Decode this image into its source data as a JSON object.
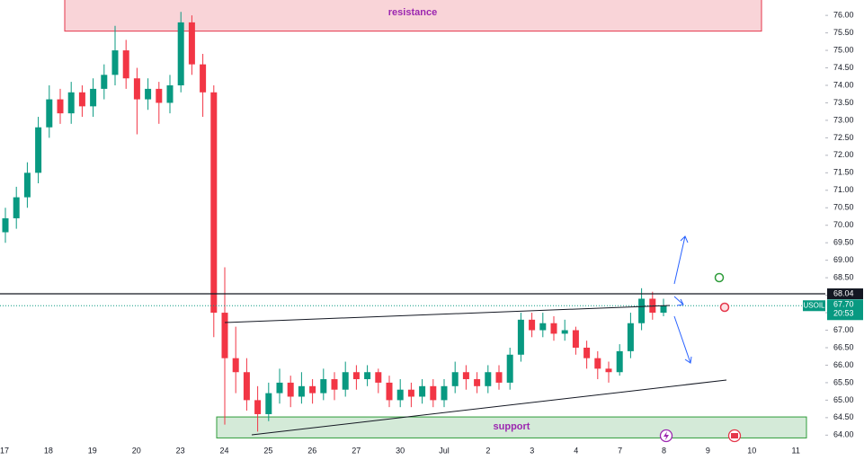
{
  "chart_data": {
    "type": "candlestick",
    "symbol": "USOIL",
    "current_price": {
      "value": 67.7,
      "label": "67.70"
    },
    "countdown": "20:53",
    "level": {
      "value": 68.04,
      "label": "68.04"
    },
    "zones": [
      {
        "name": "resistance",
        "low": 75.55,
        "high": 76.5
      },
      {
        "name": "support",
        "low": 63.92,
        "high": 64.52
      }
    ],
    "up_color": "#089981",
    "down_color": "#f23645",
    "ylim": [
      63.7,
      76.44
    ],
    "yticks": [
      {
        "value": 64,
        "label": "64.00"
      },
      {
        "value": 64.5,
        "label": "64.50"
      },
      {
        "value": 65,
        "label": "65.00"
      },
      {
        "value": 65.5,
        "label": "65.50"
      },
      {
        "value": 66,
        "label": "66.00"
      },
      {
        "value": 66.5,
        "label": "66.50"
      },
      {
        "value": 67,
        "label": "67.00"
      },
      {
        "value": 67.5,
        "label": "67.50"
      },
      {
        "value": 68,
        "label": "68.00"
      },
      {
        "value": 68.5,
        "label": "68.50"
      },
      {
        "value": 69,
        "label": "69.00"
      },
      {
        "value": 69.5,
        "label": "69.50"
      },
      {
        "value": 70,
        "label": "70.00"
      },
      {
        "value": 70.5,
        "label": "70.50"
      },
      {
        "value": 71,
        "label": "71.00"
      },
      {
        "value": 71.5,
        "label": "71.50"
      },
      {
        "value": 72,
        "label": "72.00"
      },
      {
        "value": 72.5,
        "label": "72.50"
      },
      {
        "value": 73,
        "label": "73.00"
      },
      {
        "value": 73.5,
        "label": "73.50"
      },
      {
        "value": 74,
        "label": "74.00"
      },
      {
        "value": 74.5,
        "label": "74.50"
      },
      {
        "value": 75,
        "label": "75.00"
      },
      {
        "value": 75.5,
        "label": "75.50"
      },
      {
        "value": 76,
        "label": "76.00"
      }
    ],
    "x_labels": [
      "17",
      "18",
      "19",
      "20",
      "23",
      "24",
      "25",
      "26",
      "27",
      "30",
      "Jul",
      "2",
      "3",
      "4",
      "7",
      "8",
      "9",
      "10",
      "11"
    ],
    "candles": [
      [
        69.8,
        70.5,
        69.5,
        70.2
      ],
      [
        70.2,
        71.1,
        69.9,
        70.8
      ],
      [
        70.8,
        71.8,
        70.5,
        71.5
      ],
      [
        71.5,
        73.1,
        71.2,
        72.8
      ],
      [
        72.8,
        74.0,
        72.5,
        73.6
      ],
      [
        73.6,
        73.9,
        72.9,
        73.2
      ],
      [
        73.2,
        74.1,
        72.9,
        73.8
      ],
      [
        73.8,
        74.0,
        73.1,
        73.4
      ],
      [
        73.4,
        74.2,
        73.1,
        73.9
      ],
      [
        73.9,
        74.6,
        73.6,
        74.3
      ],
      [
        74.3,
        75.7,
        74.0,
        75.0
      ],
      [
        75.0,
        75.3,
        73.9,
        74.2
      ],
      [
        74.2,
        74.5,
        72.6,
        73.6
      ],
      [
        73.6,
        74.2,
        73.3,
        73.9
      ],
      [
        73.9,
        74.1,
        72.9,
        73.5
      ],
      [
        73.5,
        74.3,
        73.2,
        74.0
      ],
      [
        74.0,
        76.1,
        73.8,
        75.8
      ],
      [
        75.8,
        76.0,
        74.3,
        74.6
      ],
      [
        74.6,
        74.9,
        73.1,
        73.8
      ],
      [
        73.8,
        74.0,
        66.8,
        67.5
      ],
      [
        67.5,
        68.8,
        64.3,
        66.2
      ],
      [
        66.2,
        67.1,
        65.2,
        65.8
      ],
      [
        65.8,
        66.2,
        64.7,
        65.0
      ],
      [
        65.0,
        65.4,
        64.1,
        64.6
      ],
      [
        64.6,
        65.5,
        64.4,
        65.2
      ],
      [
        65.2,
        65.9,
        64.9,
        65.5
      ],
      [
        65.5,
        65.7,
        64.8,
        65.1
      ],
      [
        65.1,
        65.8,
        64.9,
        65.4
      ],
      [
        65.4,
        65.6,
        64.9,
        65.2
      ],
      [
        65.2,
        65.9,
        65.0,
        65.6
      ],
      [
        65.6,
        65.8,
        65.0,
        65.3
      ],
      [
        65.3,
        66.1,
        65.1,
        65.8
      ],
      [
        65.8,
        66.0,
        65.3,
        65.6
      ],
      [
        65.6,
        66.0,
        65.4,
        65.8
      ],
      [
        65.8,
        65.9,
        65.2,
        65.5
      ],
      [
        65.5,
        65.7,
        64.8,
        65.0
      ],
      [
        65.0,
        65.6,
        64.8,
        65.3
      ],
      [
        65.3,
        65.5,
        64.8,
        65.1
      ],
      [
        65.1,
        65.6,
        64.9,
        65.4
      ],
      [
        65.4,
        65.6,
        64.8,
        65.0
      ],
      [
        65.0,
        65.6,
        64.8,
        65.4
      ],
      [
        65.4,
        66.1,
        65.2,
        65.8
      ],
      [
        65.8,
        66.0,
        65.3,
        65.6
      ],
      [
        65.6,
        65.8,
        65.2,
        65.4
      ],
      [
        65.4,
        66.0,
        65.2,
        65.8
      ],
      [
        65.8,
        66.0,
        65.3,
        65.5
      ],
      [
        65.5,
        66.5,
        65.3,
        66.3
      ],
      [
        66.3,
        67.5,
        66.1,
        67.3
      ],
      [
        67.3,
        67.5,
        66.8,
        67.0
      ],
      [
        67.0,
        67.5,
        66.8,
        67.2
      ],
      [
        67.2,
        67.4,
        66.7,
        66.9
      ],
      [
        66.9,
        67.3,
        66.7,
        67.0
      ],
      [
        67.0,
        67.1,
        66.3,
        66.5
      ],
      [
        66.5,
        66.7,
        65.9,
        66.2
      ],
      [
        66.2,
        66.4,
        65.6,
        65.9
      ],
      [
        65.9,
        66.1,
        65.5,
        65.8
      ],
      [
        65.8,
        66.6,
        65.7,
        66.4
      ],
      [
        66.4,
        67.5,
        66.2,
        67.2
      ],
      [
        67.2,
        68.2,
        67.0,
        67.9
      ],
      [
        67.9,
        68.1,
        67.3,
        67.5
      ],
      [
        67.5,
        67.9,
        67.4,
        67.7
      ]
    ]
  }
}
